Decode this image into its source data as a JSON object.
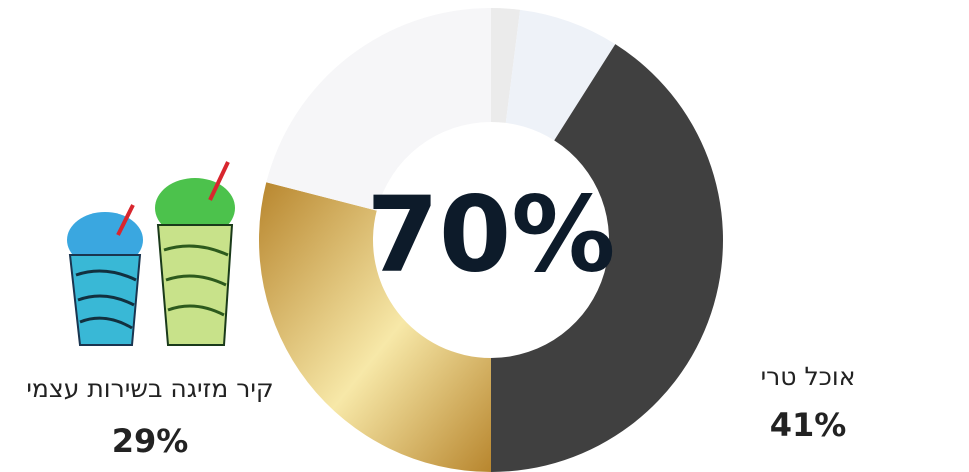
{
  "chart_data": {
    "type": "donut",
    "center_label": "70%",
    "categories": [
      null,
      null,
      "אוכל טרי",
      "קיר מזיגה בשירות עצמי",
      null
    ],
    "values": [
      2,
      7,
      41,
      29,
      21
    ],
    "value_labels": [
      null,
      null,
      "41%",
      "29%",
      null
    ],
    "colors": [
      "#ebebeb",
      "#eef2f8",
      "#404040",
      "gold-gradient",
      "#f6f6f8"
    ]
  }
}
